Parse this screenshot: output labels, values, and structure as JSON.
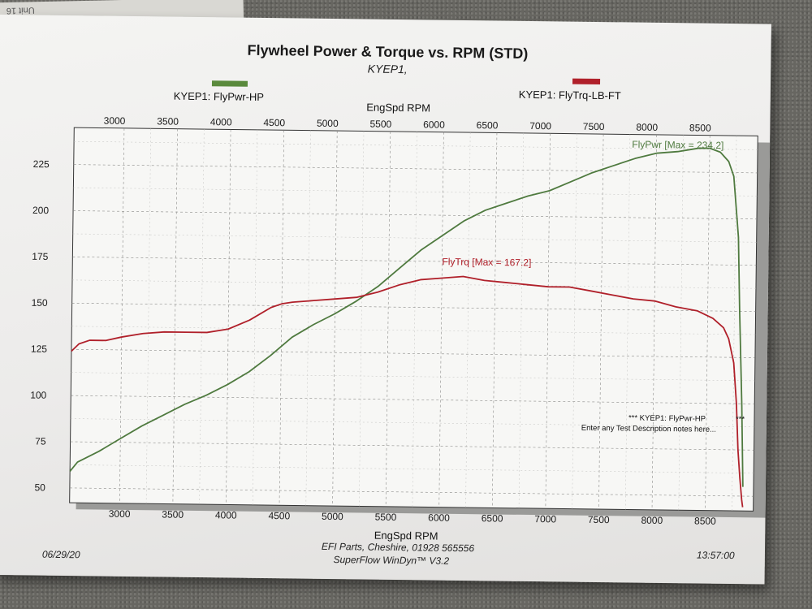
{
  "corner_label": "Unit 16",
  "chart_data": {
    "type": "line",
    "title": "Flywheel Power & Torque vs. RPM (STD)",
    "subtitle": "KYEP1,",
    "xlabel": "EngSpd RPM",
    "xlabel_top": "EngSpd RPM",
    "xlim": [
      2530,
      8950
    ],
    "ylim": [
      42,
      245
    ],
    "x_ticks": [
      3000,
      3500,
      4000,
      4500,
      5000,
      5500,
      6000,
      6500,
      7000,
      7500,
      8000,
      8500
    ],
    "y_ticks": [
      50,
      75,
      100,
      125,
      150,
      175,
      200,
      225
    ],
    "grid": true,
    "legend": [
      {
        "label": "KYEP1: FlyPwr-HP",
        "color": "#5a8a3c"
      },
      {
        "label": "KYEP1: FlyTrq-LB-FT",
        "color": "#b0202a"
      }
    ],
    "series": [
      {
        "name": "KYEP1: FlyPwr-HP",
        "color": "#4f7a3f",
        "annotation": "FlyPwr [Max = 234.2]",
        "x": [
          2530,
          2600,
          2700,
          2800,
          3000,
          3200,
          3400,
          3600,
          3800,
          4000,
          4200,
          4400,
          4500,
          4600,
          4800,
          5000,
          5200,
          5400,
          5600,
          5800,
          6000,
          6200,
          6400,
          6600,
          6800,
          7000,
          7200,
          7400,
          7600,
          7800,
          8000,
          8200,
          8300,
          8400,
          8500,
          8600,
          8680,
          8730,
          8780,
          8800,
          8830,
          8850
        ],
        "y": [
          59,
          64,
          67,
          70,
          77,
          84,
          90,
          96,
          101,
          107,
          114,
          123,
          128,
          133,
          140,
          146,
          153,
          161,
          171,
          181,
          189,
          197,
          203,
          207,
          211,
          214,
          219,
          224,
          228,
          232,
          235,
          236,
          237,
          238,
          238,
          236,
          231,
          223,
          190,
          150,
          100,
          55
        ]
      },
      {
        "name": "KYEP1: FlyTrq-LB-FT",
        "color": "#b0202a",
        "annotation": "FlyTrq [Max = 167.2]",
        "x": [
          2530,
          2600,
          2700,
          2850,
          3000,
          3200,
          3400,
          3600,
          3800,
          4000,
          4200,
          4400,
          4500,
          4600,
          4800,
          5000,
          5200,
          5400,
          5600,
          5800,
          6000,
          6200,
          6400,
          6600,
          6800,
          7000,
          7200,
          7400,
          7600,
          7800,
          8000,
          8200,
          8400,
          8550,
          8650,
          8700,
          8750,
          8780,
          8800,
          8820,
          8840,
          8850
        ],
        "y": [
          124,
          128,
          130,
          130,
          132,
          134,
          135,
          135,
          135,
          137,
          142,
          149,
          151,
          152,
          153,
          154,
          155,
          158,
          162,
          165,
          166,
          167,
          165,
          164,
          163,
          162,
          162,
          160,
          158,
          156,
          155,
          152,
          150,
          146,
          141,
          135,
          122,
          100,
          75,
          60,
          48,
          44
        ]
      }
    ],
    "note_lines": [
      "*** KYEP1: FlyPwr-HP",
      "Enter any Test Description notes here..."
    ],
    "note_mark": "***",
    "footer": {
      "date": "06/29/20",
      "company": "EFI Parts, Cheshire, 01928 565556",
      "software": "SuperFlow WinDyn™ V3.2",
      "time": "13:57:00"
    }
  }
}
